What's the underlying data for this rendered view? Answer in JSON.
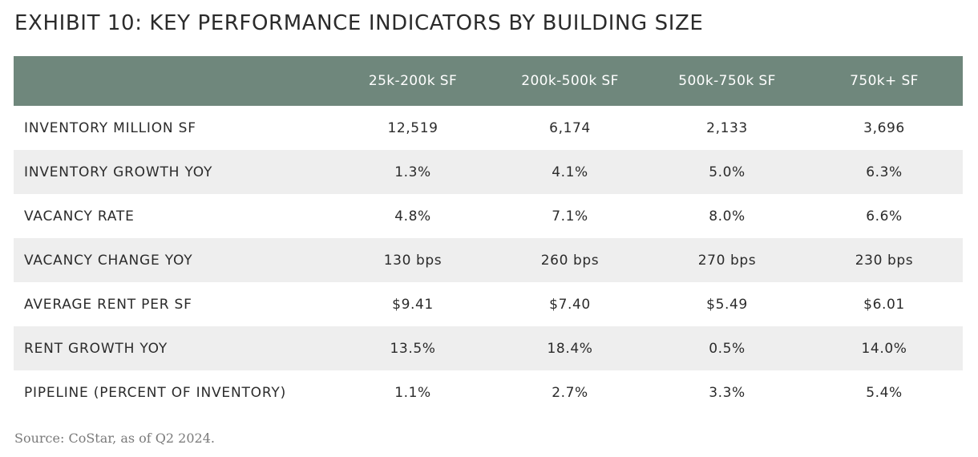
{
  "chart_data": {
    "type": "table",
    "title": "EXHIBIT 10: KEY PERFORMANCE INDICATORS BY BUILDING SIZE",
    "columns": [
      "",
      "25k-200k SF",
      "200k-500k SF",
      "500k-750k SF",
      "750k+ SF"
    ],
    "rows": [
      {
        "label": "INVENTORY MILLION SF",
        "values": [
          "12,519",
          "6,174",
          "2,133",
          "3,696"
        ]
      },
      {
        "label": "INVENTORY GROWTH YOY",
        "values": [
          "1.3%",
          "4.1%",
          "5.0%",
          "6.3%"
        ]
      },
      {
        "label": "VACANCY RATE",
        "values": [
          "4.8%",
          "7.1%",
          "8.0%",
          "6.6%"
        ]
      },
      {
        "label": "VACANCY CHANGE YOY",
        "values": [
          "130 bps",
          "260 bps",
          "270 bps",
          "230 bps"
        ]
      },
      {
        "label": "AVERAGE RENT PER SF",
        "values": [
          "$9.41",
          "$7.40",
          "$5.49",
          "$6.01"
        ]
      },
      {
        "label": "RENT GROWTH YOY",
        "values": [
          "13.5%",
          "18.4%",
          "0.5%",
          "14.0%"
        ]
      },
      {
        "label": "PIPELINE (PERCENT OF INVENTORY)",
        "values": [
          "1.1%",
          "2.7%",
          "3.3%",
          "5.4%"
        ]
      }
    ],
    "source": "Source: CoStar, as of Q2 2024.",
    "colors": {
      "header_background": "#6f877c",
      "header_text": "#ffffff",
      "stripe_background": "#eeeeee",
      "text": "#2b2b2b",
      "source_text": "#7a7a7a"
    }
  }
}
